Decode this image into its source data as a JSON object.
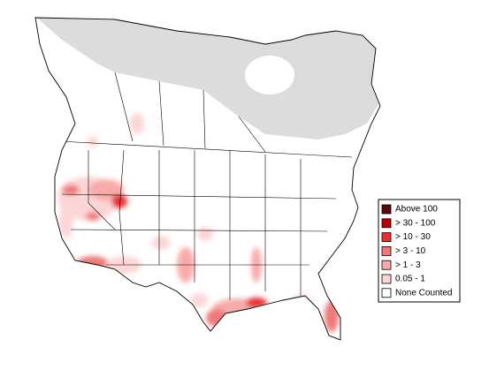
{
  "legend": {
    "items": [
      {
        "label": "Above 100",
        "color": "#5a0a0a"
      },
      {
        "label": "> 30 - 100",
        "color": "#b40000"
      },
      {
        "label": "> 10 - 30",
        "color": "#e83232"
      },
      {
        "label": "> 3 - 10",
        "color": "#f07878"
      },
      {
        "label": "> 1 - 3",
        "color": "#f8aaaa"
      },
      {
        "label": "0.05 - 1",
        "color": "#fcd6d6"
      },
      {
        "label": "None Counted",
        "color": "#ffffff"
      }
    ]
  }
}
